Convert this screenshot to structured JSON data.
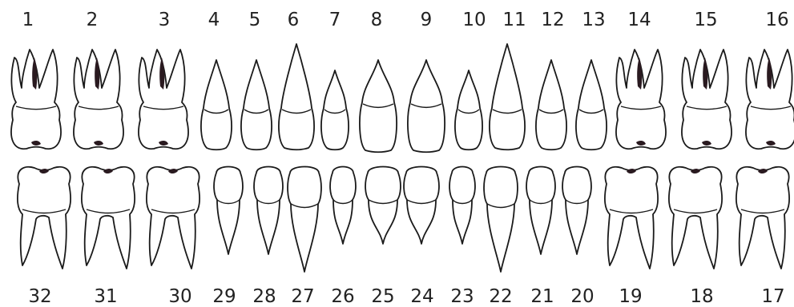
{
  "upper_teeth": [
    {
      "number": "1",
      "type": "molar"
    },
    {
      "number": "2",
      "type": "molar"
    },
    {
      "number": "3",
      "type": "molar"
    },
    {
      "number": "4",
      "type": "premolar"
    },
    {
      "number": "5",
      "type": "premolar"
    },
    {
      "number": "6",
      "type": "canine"
    },
    {
      "number": "7",
      "type": "lateral-incisor"
    },
    {
      "number": "8",
      "type": "central-incisor"
    },
    {
      "number": "9",
      "type": "central-incisor"
    },
    {
      "number": "10",
      "type": "lateral-incisor"
    },
    {
      "number": "11",
      "type": "canine"
    },
    {
      "number": "12",
      "type": "premolar"
    },
    {
      "number": "13",
      "type": "premolar"
    },
    {
      "number": "14",
      "type": "molar"
    },
    {
      "number": "15",
      "type": "molar"
    },
    {
      "number": "16",
      "type": "molar"
    }
  ],
  "lower_teeth": [
    {
      "number": "32",
      "type": "molar"
    },
    {
      "number": "31",
      "type": "molar"
    },
    {
      "number": "30",
      "type": "molar"
    },
    {
      "number": "29",
      "type": "premolar"
    },
    {
      "number": "28",
      "type": "premolar"
    },
    {
      "number": "27",
      "type": "canine"
    },
    {
      "number": "26",
      "type": "lateral-incisor"
    },
    {
      "number": "25",
      "type": "central-incisor"
    },
    {
      "number": "24",
      "type": "central-incisor"
    },
    {
      "number": "23",
      "type": "lateral-incisor"
    },
    {
      "number": "22",
      "type": "canine"
    },
    {
      "number": "21",
      "type": "premolar"
    },
    {
      "number": "20",
      "type": "premolar"
    },
    {
      "number": "19",
      "type": "molar"
    },
    {
      "number": "18",
      "type": "molar"
    },
    {
      "number": "17",
      "type": "molar"
    }
  ],
  "colors": {
    "outline": "#1a1a1a",
    "label": "#222222",
    "background": "#ffffff"
  }
}
